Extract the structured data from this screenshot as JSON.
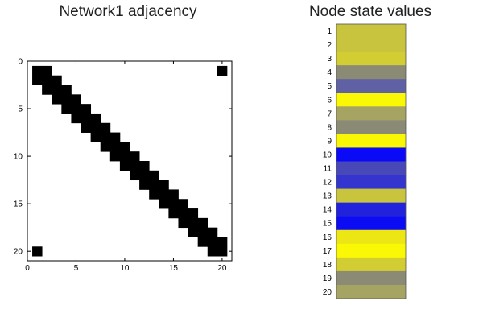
{
  "chart_data": [
    {
      "type": "heatmap",
      "title": "Network1 adjacency",
      "xlim": [
        0,
        21
      ],
      "ylim": [
        0,
        21
      ],
      "y_reversed": true,
      "xticks": [
        0,
        5,
        10,
        15,
        20
      ],
      "yticks": [
        0,
        5,
        10,
        15,
        20
      ],
      "xtick_labels": [
        "0",
        "5",
        "10",
        "15",
        "20"
      ],
      "ytick_labels": [
        "0",
        "5",
        "10",
        "15",
        "20"
      ],
      "cell_colors": {
        "filled": "#000000",
        "empty": "#ffffff"
      },
      "filled_cells": [
        [
          1,
          1
        ],
        [
          2,
          1
        ],
        [
          1,
          2
        ],
        [
          2,
          2
        ],
        [
          3,
          2
        ],
        [
          2,
          3
        ],
        [
          3,
          3
        ],
        [
          4,
          3
        ],
        [
          3,
          4
        ],
        [
          4,
          4
        ],
        [
          5,
          4
        ],
        [
          4,
          5
        ],
        [
          5,
          5
        ],
        [
          6,
          5
        ],
        [
          5,
          6
        ],
        [
          6,
          6
        ],
        [
          7,
          6
        ],
        [
          6,
          7
        ],
        [
          7,
          7
        ],
        [
          8,
          7
        ],
        [
          7,
          8
        ],
        [
          8,
          8
        ],
        [
          9,
          8
        ],
        [
          8,
          9
        ],
        [
          9,
          9
        ],
        [
          10,
          9
        ],
        [
          9,
          10
        ],
        [
          10,
          10
        ],
        [
          11,
          10
        ],
        [
          10,
          11
        ],
        [
          11,
          11
        ],
        [
          12,
          11
        ],
        [
          11,
          12
        ],
        [
          12,
          12
        ],
        [
          13,
          12
        ],
        [
          12,
          13
        ],
        [
          13,
          13
        ],
        [
          14,
          13
        ],
        [
          13,
          14
        ],
        [
          14,
          14
        ],
        [
          15,
          14
        ],
        [
          14,
          15
        ],
        [
          15,
          15
        ],
        [
          16,
          15
        ],
        [
          15,
          16
        ],
        [
          16,
          16
        ],
        [
          17,
          16
        ],
        [
          16,
          17
        ],
        [
          17,
          17
        ],
        [
          18,
          17
        ],
        [
          17,
          18
        ],
        [
          18,
          18
        ],
        [
          19,
          18
        ],
        [
          18,
          19
        ],
        [
          19,
          19
        ],
        [
          20,
          19
        ],
        [
          19,
          20
        ],
        [
          20,
          20
        ],
        [
          20,
          1
        ],
        [
          1,
          20
        ]
      ]
    },
    {
      "type": "heatmap",
      "title": "Node state values",
      "rows": [
        "1",
        "2",
        "3",
        "4",
        "5",
        "6",
        "7",
        "8",
        "9",
        "10",
        "11",
        "12",
        "13",
        "14",
        "15",
        "16",
        "17",
        "18",
        "19",
        "20"
      ],
      "colors": [
        "#c9c43e",
        "#c9c43e",
        "#d2cd32",
        "#8b8b75",
        "#6060a4",
        "#fbf805",
        "#a6a463",
        "#8b8b75",
        "#faf705",
        "#0a0af6",
        "#4848b8",
        "#3434ce",
        "#c9c43e",
        "#2222dd",
        "#0b0bf4",
        "#ebe614",
        "#fbf805",
        "#d2cd32",
        "#8b8b75",
        "#a6a463"
      ]
    }
  ]
}
